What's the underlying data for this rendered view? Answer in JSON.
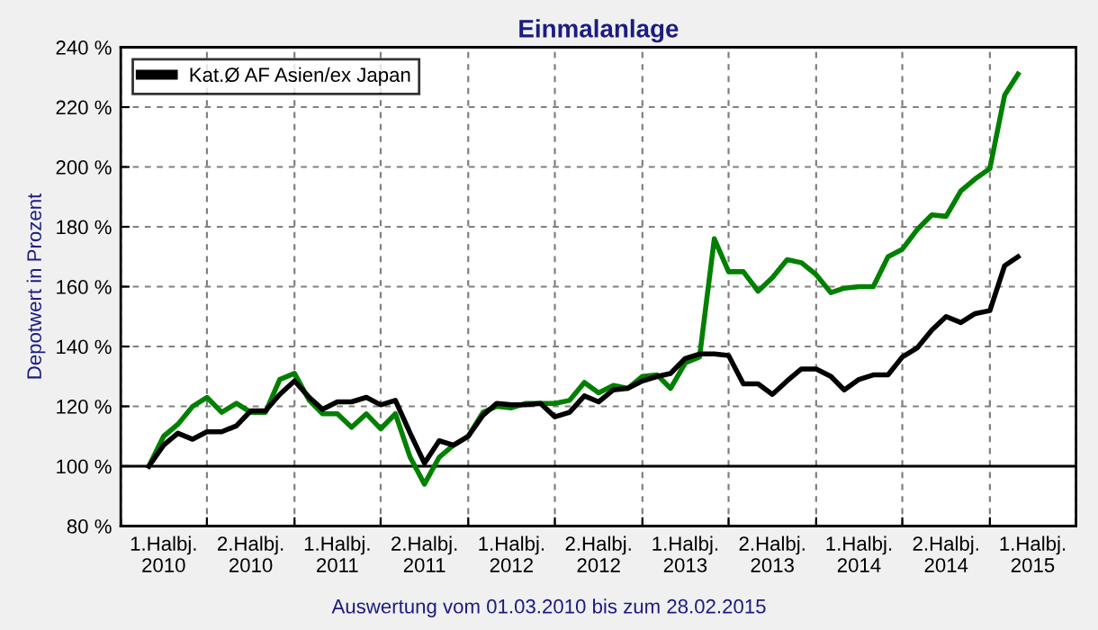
{
  "chart_data": {
    "type": "line",
    "title": "Einmalanlage",
    "ylabel": "Depotwert in Prozent",
    "annotations": [
      "Auswertung vom 01.03.2010 bis zum 28.02.2015"
    ],
    "x": [
      "2010-03",
      "2010-04",
      "2010-05",
      "2010-06",
      "2010-07",
      "2010-08",
      "2010-09",
      "2010-10",
      "2010-11",
      "2010-12",
      "2011-01",
      "2011-02",
      "2011-03",
      "2011-04",
      "2011-05",
      "2011-06",
      "2011-07",
      "2011-08",
      "2011-09",
      "2011-10",
      "2011-11",
      "2011-12",
      "2012-01",
      "2012-02",
      "2012-03",
      "2012-04",
      "2012-05",
      "2012-06",
      "2012-07",
      "2012-08",
      "2012-09",
      "2012-10",
      "2012-11",
      "2012-12",
      "2013-01",
      "2013-02",
      "2013-03",
      "2013-04",
      "2013-05",
      "2013-06",
      "2013-07",
      "2013-08",
      "2013-09",
      "2013-10",
      "2013-11",
      "2013-12",
      "2014-01",
      "2014-02",
      "2014-03",
      "2014-04",
      "2014-05",
      "2014-06",
      "2014-07",
      "2014-08",
      "2014-09",
      "2014-10",
      "2014-11",
      "2014-12",
      "2015-01",
      "2015-02",
      "2015-03"
    ],
    "series": [
      {
        "color": "#008000",
        "values": [
          100,
          110,
          114,
          120,
          123,
          118,
          121,
          118,
          118,
          129,
          131,
          122,
          117.5,
          117.5,
          113,
          117.5,
          112.5,
          117.5,
          103,
          94,
          103,
          107,
          110,
          118,
          120,
          119.5,
          121,
          121,
          121,
          122,
          128,
          124.5,
          127,
          126,
          130,
          130.5,
          126,
          134.5,
          136.5,
          176,
          165,
          165,
          158.5,
          163,
          169,
          168,
          164,
          158,
          159.5,
          160,
          160,
          170,
          172.5,
          179,
          184,
          183.5,
          192,
          196,
          199.5,
          224,
          231
        ]
      },
      {
        "name": "Kat.Ø AF Asien/ex Japan",
        "color": "#000000",
        "values": [
          100,
          107,
          111,
          109,
          111.5,
          111.5,
          113.5,
          118.5,
          118.5,
          124,
          128.5,
          123,
          119,
          121.5,
          121.5,
          123,
          120.5,
          122,
          111,
          101,
          108.5,
          107,
          110,
          117,
          121,
          120.5,
          120.5,
          121,
          116.5,
          118,
          123.5,
          121.5,
          125.5,
          126,
          128.5,
          130,
          131,
          136,
          137.5,
          137.5,
          137,
          127.5,
          127.5,
          124,
          128.5,
          132.5,
          132.5,
          130,
          125.5,
          129,
          130.5,
          130.5,
          136.5,
          139.5,
          145.5,
          150,
          148,
          151,
          152,
          167,
          170
        ]
      }
    ],
    "xlim": [
      "2010-01-01",
      "2015-07-01"
    ],
    "xticks": [
      {
        "value": "2010-01-01",
        "label": null
      },
      {
        "value": "2010-04-01",
        "label": "1.Halbj.\n2010"
      },
      {
        "value": "2010-07-01",
        "label": null
      },
      {
        "value": "2010-10-01",
        "label": "2.Halbj.\n2010"
      },
      {
        "value": "2011-01-01",
        "label": null
      },
      {
        "value": "2011-04-01",
        "label": "1.Halbj.\n2011"
      },
      {
        "value": "2011-07-01",
        "label": null
      },
      {
        "value": "2011-10-01",
        "label": "2.Halbj.\n2011"
      },
      {
        "value": "2012-01-01",
        "label": null
      },
      {
        "value": "2012-04-01",
        "label": "1.Halbj.\n2012"
      },
      {
        "value": "2012-07-01",
        "label": null
      },
      {
        "value": "2012-10-01",
        "label": "2.Halbj.\n2012"
      },
      {
        "value": "2013-01-01",
        "label": null
      },
      {
        "value": "2013-04-01",
        "label": "1.Halbj.\n2013"
      },
      {
        "value": "2013-07-01",
        "label": null
      },
      {
        "value": "2013-10-01",
        "label": "2.Halbj.\n2013"
      },
      {
        "value": "2014-01-01",
        "label": null
      },
      {
        "value": "2014-04-01",
        "label": "1.Halbj.\n2014"
      },
      {
        "value": "2014-07-01",
        "label": null
      },
      {
        "value": "2014-10-01",
        "label": "2.Halbj.\n2014"
      },
      {
        "value": "2015-01-01",
        "label": null
      },
      {
        "value": "2015-04-01",
        "label": "1.Halbj.\n2015"
      },
      {
        "value": "2015-07-01",
        "label": null
      }
    ],
    "ylim": [
      80,
      240
    ],
    "yticks": [
      {
        "value": 80,
        "label": "80 %"
      },
      {
        "value": 100,
        "label": "100 %"
      },
      {
        "value": 120,
        "label": "120 %"
      },
      {
        "value": 140,
        "label": "140 %"
      },
      {
        "value": 160,
        "label": "160 %"
      },
      {
        "value": 180,
        "label": "180 %"
      },
      {
        "value": 200,
        "label": "200 %"
      },
      {
        "value": 220,
        "label": "220 %"
      },
      {
        "value": 240,
        "label": "240 %"
      }
    ],
    "ref_lines": [
      {
        "axis": "y",
        "value": 100,
        "color": "#000000"
      }
    ],
    "grid": true,
    "legend": "top left",
    "marker": "none",
    "line_style": "solid"
  }
}
